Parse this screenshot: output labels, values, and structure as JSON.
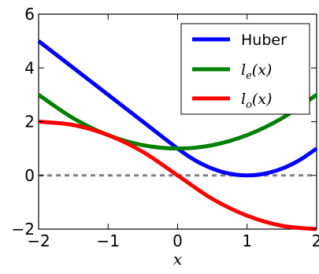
{
  "chart_data": {
    "type": "line",
    "xlabel": "x",
    "ylabel": "",
    "xlim": [
      -2,
      2
    ],
    "ylim": [
      -2,
      6
    ],
    "x_ticks": [
      -2,
      -1,
      0,
      1,
      2
    ],
    "y_ticks": [
      -2,
      0,
      2,
      4,
      6
    ],
    "x_tick_labels": [
      "−2",
      "−1",
      "0",
      "1",
      "2"
    ],
    "y_tick_labels": [
      "−2",
      "0",
      "2",
      "4",
      "6"
    ],
    "grid": false,
    "legend_position": "top-right",
    "reference_line": {
      "y": 0,
      "style": "dashed",
      "color": "#808080"
    },
    "series": [
      {
        "name": "Huber",
        "color": "#0000ff",
        "x": [
          -2,
          -1.5,
          -1,
          -0.5,
          0,
          0.25,
          0.5,
          0.75,
          1,
          1.25,
          1.5,
          1.75,
          2
        ],
        "y": [
          5,
          4,
          3,
          2,
          1,
          0.5625,
          0.25,
          0.0625,
          0,
          0.0625,
          0.25,
          0.5625,
          1
        ]
      },
      {
        "name": "l_e(x)",
        "color": "#008000",
        "x": [
          -2,
          -1.5,
          -1,
          -0.5,
          0,
          0.5,
          1,
          1.5,
          2
        ],
        "y": [
          3,
          2.125,
          1.5,
          1.125,
          1,
          1.125,
          1.5,
          2.125,
          3
        ]
      },
      {
        "name": "l_o(x)",
        "color": "#ff0000",
        "x": [
          -2,
          -1.5,
          -1,
          -0.5,
          0,
          0.5,
          1,
          1.5,
          2
        ],
        "y": [
          2,
          1.875,
          1.5,
          0.875,
          0,
          -0.875,
          -1.5,
          -1.875,
          -2
        ]
      }
    ]
  },
  "legend": {
    "items": [
      {
        "label": "Huber",
        "color": "#0000ff"
      },
      {
        "base": "l",
        "sub": "e",
        "arg": "(x)",
        "color": "#008000"
      },
      {
        "base": "l",
        "sub": "o",
        "arg": "(x)",
        "color": "#ff0000"
      }
    ]
  }
}
